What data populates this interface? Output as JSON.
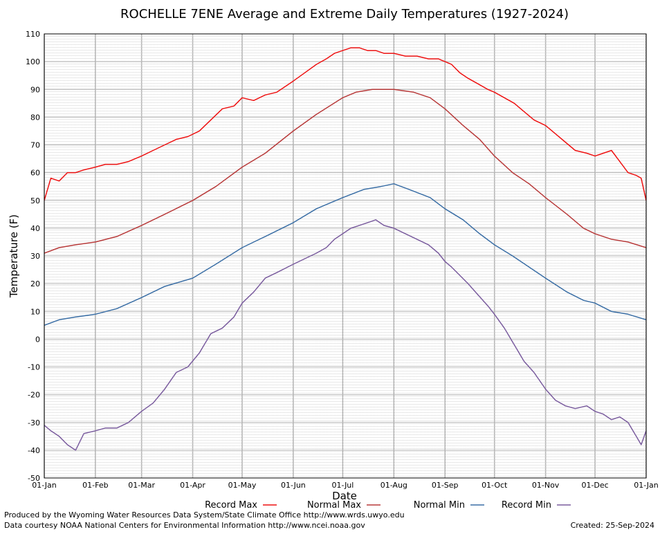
{
  "chart_data": {
    "type": "line",
    "title": "ROCHELLE 7ENE Average and Extreme Daily Temperatures (1927-2024)",
    "xlabel": "Date",
    "ylabel": "Temperature (F)",
    "ylim": [
      -50,
      110
    ],
    "yticks": [
      110,
      100,
      90,
      80,
      70,
      60,
      50,
      40,
      30,
      20,
      10,
      0,
      -10,
      -20,
      -30,
      -40,
      -50
    ],
    "xlim": [
      1,
      366
    ],
    "xticks": [
      {
        "day": 1,
        "label": "01-Jan"
      },
      {
        "day": 32,
        "label": "01-Feb"
      },
      {
        "day": 60,
        "label": "01-Mar"
      },
      {
        "day": 91,
        "label": "01-Apr"
      },
      {
        "day": 121,
        "label": "01-May"
      },
      {
        "day": 152,
        "label": "01-Jun"
      },
      {
        "day": 182,
        "label": "01-Jul"
      },
      {
        "day": 213,
        "label": "01-Aug"
      },
      {
        "day": 244,
        "label": "01-Sep"
      },
      {
        "day": 274,
        "label": "01-Oct"
      },
      {
        "day": 305,
        "label": "01-Nov"
      },
      {
        "day": 335,
        "label": "01-Dec"
      },
      {
        "day": 366,
        "label": "01-Jan"
      }
    ],
    "grid": true,
    "legend_position": "bottom",
    "series": [
      {
        "name": "Record Max",
        "color": "#ee1111",
        "points": [
          [
            1,
            50
          ],
          [
            5,
            58
          ],
          [
            10,
            57
          ],
          [
            15,
            60
          ],
          [
            20,
            60
          ],
          [
            25,
            61
          ],
          [
            32,
            62
          ],
          [
            38,
            63
          ],
          [
            45,
            63
          ],
          [
            52,
            64
          ],
          [
            60,
            66
          ],
          [
            67,
            68
          ],
          [
            74,
            70
          ],
          [
            81,
            72
          ],
          [
            88,
            73
          ],
          [
            95,
            75
          ],
          [
            102,
            79
          ],
          [
            109,
            83
          ],
          [
            116,
            84
          ],
          [
            121,
            87
          ],
          [
            128,
            86
          ],
          [
            135,
            88
          ],
          [
            142,
            89
          ],
          [
            152,
            93
          ],
          [
            159,
            96
          ],
          [
            166,
            99
          ],
          [
            172,
            101
          ],
          [
            177,
            103
          ],
          [
            182,
            104
          ],
          [
            187,
            105
          ],
          [
            192,
            105
          ],
          [
            197,
            104
          ],
          [
            202,
            104
          ],
          [
            207,
            103
          ],
          [
            213,
            103
          ],
          [
            220,
            102
          ],
          [
            227,
            102
          ],
          [
            234,
            101
          ],
          [
            240,
            101
          ],
          [
            244,
            100
          ],
          [
            248,
            99
          ],
          [
            253,
            96
          ],
          [
            258,
            94
          ],
          [
            264,
            92
          ],
          [
            270,
            90
          ],
          [
            274,
            89
          ],
          [
            280,
            87
          ],
          [
            286,
            85
          ],
          [
            292,
            82
          ],
          [
            298,
            79
          ],
          [
            305,
            77
          ],
          [
            311,
            74
          ],
          [
            317,
            71
          ],
          [
            323,
            68
          ],
          [
            330,
            67
          ],
          [
            335,
            66
          ],
          [
            340,
            67
          ],
          [
            345,
            68
          ],
          [
            350,
            64
          ],
          [
            355,
            60
          ],
          [
            360,
            59
          ],
          [
            363,
            58
          ],
          [
            366,
            50
          ]
        ]
      },
      {
        "name": "Normal Max",
        "color": "#b83a3a",
        "points": [
          [
            1,
            31
          ],
          [
            10,
            33
          ],
          [
            20,
            34
          ],
          [
            32,
            35
          ],
          [
            45,
            37
          ],
          [
            60,
            41
          ],
          [
            74,
            45
          ],
          [
            91,
            50
          ],
          [
            105,
            55
          ],
          [
            121,
            62
          ],
          [
            135,
            67
          ],
          [
            152,
            75
          ],
          [
            166,
            81
          ],
          [
            182,
            87
          ],
          [
            190,
            89
          ],
          [
            200,
            90
          ],
          [
            213,
            90
          ],
          [
            225,
            89
          ],
          [
            235,
            87
          ],
          [
            244,
            83
          ],
          [
            255,
            77
          ],
          [
            265,
            72
          ],
          [
            274,
            66
          ],
          [
            285,
            60
          ],
          [
            295,
            56
          ],
          [
            305,
            51
          ],
          [
            318,
            45
          ],
          [
            328,
            40
          ],
          [
            335,
            38
          ],
          [
            345,
            36
          ],
          [
            355,
            35
          ],
          [
            366,
            33
          ]
        ]
      },
      {
        "name": "Normal Min",
        "color": "#3a6ea5",
        "points": [
          [
            1,
            5
          ],
          [
            10,
            7
          ],
          [
            20,
            8
          ],
          [
            32,
            9
          ],
          [
            45,
            11
          ],
          [
            60,
            15
          ],
          [
            74,
            19
          ],
          [
            91,
            22
          ],
          [
            105,
            27
          ],
          [
            121,
            33
          ],
          [
            135,
            37
          ],
          [
            152,
            42
          ],
          [
            166,
            47
          ],
          [
            182,
            51
          ],
          [
            195,
            54
          ],
          [
            205,
            55
          ],
          [
            213,
            56
          ],
          [
            222,
            54
          ],
          [
            235,
            51
          ],
          [
            244,
            47
          ],
          [
            255,
            43
          ],
          [
            265,
            38
          ],
          [
            274,
            34
          ],
          [
            285,
            30
          ],
          [
            295,
            26
          ],
          [
            305,
            22
          ],
          [
            318,
            17
          ],
          [
            328,
            14
          ],
          [
            335,
            13
          ],
          [
            345,
            10
          ],
          [
            355,
            9
          ],
          [
            366,
            7
          ]
        ]
      },
      {
        "name": "Record Min",
        "color": "#7a5c9e",
        "points": [
          [
            1,
            -31
          ],
          [
            5,
            -33
          ],
          [
            10,
            -35
          ],
          [
            15,
            -38
          ],
          [
            20,
            -40
          ],
          [
            25,
            -34
          ],
          [
            32,
            -33
          ],
          [
            38,
            -32
          ],
          [
            45,
            -32
          ],
          [
            52,
            -30
          ],
          [
            60,
            -26
          ],
          [
            67,
            -23
          ],
          [
            74,
            -18
          ],
          [
            81,
            -12
          ],
          [
            88,
            -10
          ],
          [
            95,
            -5
          ],
          [
            102,
            2
          ],
          [
            109,
            4
          ],
          [
            116,
            8
          ],
          [
            121,
            13
          ],
          [
            128,
            17
          ],
          [
            135,
            22
          ],
          [
            142,
            24
          ],
          [
            152,
            27
          ],
          [
            159,
            29
          ],
          [
            166,
            31
          ],
          [
            172,
            33
          ],
          [
            177,
            36
          ],
          [
            182,
            38
          ],
          [
            187,
            40
          ],
          [
            192,
            41
          ],
          [
            197,
            42
          ],
          [
            202,
            43
          ],
          [
            207,
            41
          ],
          [
            213,
            40
          ],
          [
            220,
            38
          ],
          [
            227,
            36
          ],
          [
            234,
            34
          ],
          [
            240,
            31
          ],
          [
            244,
            28
          ],
          [
            248,
            26
          ],
          [
            253,
            23
          ],
          [
            258,
            20
          ],
          [
            264,
            16
          ],
          [
            270,
            12
          ],
          [
            274,
            9
          ],
          [
            280,
            4
          ],
          [
            286,
            -2
          ],
          [
            292,
            -8
          ],
          [
            298,
            -12
          ],
          [
            305,
            -18
          ],
          [
            311,
            -22
          ],
          [
            317,
            -24
          ],
          [
            323,
            -25
          ],
          [
            330,
            -24
          ],
          [
            335,
            -26
          ],
          [
            340,
            -27
          ],
          [
            345,
            -29
          ],
          [
            350,
            -28
          ],
          [
            355,
            -30
          ],
          [
            360,
            -35
          ],
          [
            363,
            -38
          ],
          [
            366,
            -33
          ]
        ]
      }
    ]
  },
  "legend": {
    "record_max": "Record Max",
    "normal_max": "Normal Max",
    "normal_min": "Normal Min",
    "record_min": "Record Min"
  },
  "footer": {
    "produced_by": "Produced by the Wyoming Water Resources Data System/State Climate Office http://www.wrds.uwyo.edu",
    "data_courtesy": "Data courtesy NOAA National Centers for Environmental Information http://www.ncei.noaa.gov",
    "created": "Created: 25-Sep-2024"
  }
}
